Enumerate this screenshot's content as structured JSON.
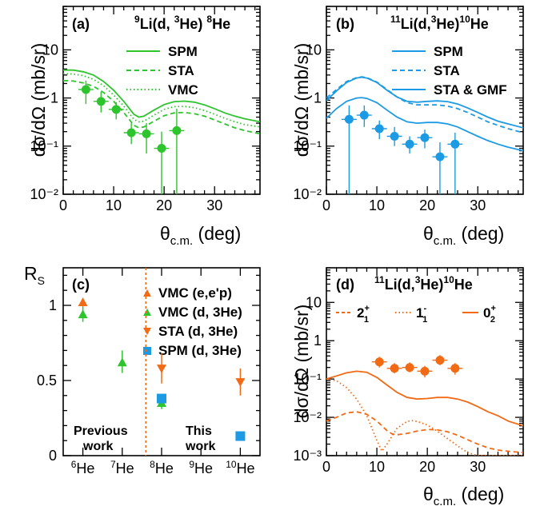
{
  "colors": {
    "green": "#2ec42e",
    "blue": "#1c9be4",
    "orange": "#f26a14",
    "axis": "#000000"
  },
  "chart_data": [
    {
      "id": "a",
      "type": "line",
      "label": "(a)",
      "reaction": {
        "pre": "9",
        "a": "Li(d, ",
        "b": "3",
        "c": "He) ",
        "d": "8",
        "e": "He"
      },
      "xlabel": "θc.m. (deg)",
      "ylabel": "dσ/dΩ (mb/sr)",
      "xlim": [
        0,
        39
      ],
      "ylim": [
        0.01,
        80
      ],
      "yscale": "log",
      "xticks": [
        "0",
        "10",
        "20",
        "30"
      ],
      "yticks": [
        "10⁻²",
        "10⁻¹",
        "1",
        "10"
      ],
      "legend": [
        "SPM",
        "STA",
        "VMC"
      ],
      "series": [
        {
          "name": "SPM",
          "style": "solid",
          "color": "#2ec42e",
          "x": [
            0,
            2,
            4,
            6,
            8,
            10,
            12,
            14,
            15,
            16,
            18,
            20,
            22,
            24,
            26,
            28,
            30,
            32,
            34,
            36,
            39
          ],
          "y": [
            3.8,
            3.8,
            3.5,
            3.0,
            2.2,
            1.45,
            0.85,
            0.46,
            0.4,
            0.42,
            0.56,
            0.73,
            0.84,
            0.86,
            0.82,
            0.72,
            0.6,
            0.49,
            0.42,
            0.37,
            0.32
          ]
        },
        {
          "name": "STA",
          "style": "dashed",
          "color": "#2ec42e",
          "x": [
            0,
            2,
            4,
            6,
            8,
            10,
            12,
            14,
            15,
            16,
            18,
            20,
            22,
            24,
            26,
            28,
            30,
            32,
            34,
            36,
            39
          ],
          "y": [
            2.3,
            2.25,
            2.05,
            1.75,
            1.3,
            0.85,
            0.5,
            0.27,
            0.24,
            0.25,
            0.33,
            0.43,
            0.49,
            0.5,
            0.47,
            0.42,
            0.35,
            0.29,
            0.24,
            0.21,
            0.18
          ]
        },
        {
          "name": "VMC",
          "style": "dotted",
          "color": "#2ec42e",
          "x": [
            0,
            2,
            4,
            6,
            8,
            10,
            12,
            14,
            15,
            16,
            18,
            20,
            22,
            24,
            26,
            28,
            30,
            32,
            34,
            36,
            39
          ],
          "y": [
            3.2,
            3.15,
            2.9,
            2.45,
            1.8,
            1.15,
            0.68,
            0.36,
            0.32,
            0.33,
            0.44,
            0.58,
            0.66,
            0.67,
            0.63,
            0.55,
            0.46,
            0.38,
            0.32,
            0.28,
            0.25
          ]
        }
      ],
      "points": {
        "color": "#2ec42e",
        "shape": "circle",
        "x": [
          4.5,
          7.5,
          10.5,
          13.5,
          16.5,
          19.5,
          22.5
        ],
        "y": [
          1.5,
          0.85,
          0.58,
          0.19,
          0.18,
          0.09,
          0.21
        ],
        "ylo": [
          0.75,
          0.5,
          0.36,
          0.11,
          0.07,
          0.0001,
          0.0001
        ],
        "yhi": [
          2.3,
          1.35,
          0.82,
          0.3,
          0.3,
          0.2,
          0.6
        ]
      }
    },
    {
      "id": "b",
      "type": "line",
      "label": "(b)",
      "reaction": {
        "pre": "11",
        "a": "Li(d,",
        "b": "3",
        "c": "He)",
        "d": "10",
        "e": "He"
      },
      "xlabel": "θc.m. (deg)",
      "ylabel": "dσ/dΩ (mb/sr)",
      "xlim": [
        0,
        39
      ],
      "ylim": [
        0.01,
        80
      ],
      "yscale": "log",
      "xticks": [
        "0",
        "10",
        "20",
        "30"
      ],
      "yticks": [
        "10⁻²",
        "10⁻¹",
        "1",
        "10"
      ],
      "legend": [
        "SPM",
        "STA",
        "STA & GMF"
      ],
      "series": [
        {
          "name": "SPM",
          "style": "solid",
          "color": "#1c9be4",
          "x": [
            0,
            2,
            4,
            6,
            7,
            8,
            10,
            12,
            14,
            16,
            18,
            20,
            22,
            24,
            26,
            28,
            30,
            32,
            34,
            36,
            39
          ],
          "y": [
            0.88,
            1.4,
            2.1,
            2.6,
            2.7,
            2.6,
            2.1,
            1.45,
            1.05,
            0.85,
            0.82,
            0.85,
            0.87,
            0.84,
            0.75,
            0.62,
            0.5,
            0.4,
            0.33,
            0.29,
            0.24
          ]
        },
        {
          "name": "STA",
          "style": "dashed",
          "color": "#1c9be4",
          "x": [
            0,
            2,
            4,
            6,
            7,
            8,
            10,
            12,
            14,
            16,
            18,
            20,
            22,
            24,
            26,
            28,
            30,
            32,
            34,
            36,
            39
          ],
          "y": [
            1.0,
            1.5,
            2.2,
            2.65,
            2.75,
            2.65,
            2.15,
            1.5,
            1.05,
            0.8,
            0.72,
            0.72,
            0.72,
            0.68,
            0.6,
            0.5,
            0.4,
            0.32,
            0.27,
            0.23,
            0.19
          ]
        },
        {
          "name": "STA & GMF",
          "style": "solid",
          "color": "#1c9be4",
          "x": [
            0,
            2,
            4,
            6,
            7,
            8,
            10,
            12,
            14,
            16,
            18,
            20,
            22,
            24,
            26,
            28,
            30,
            32,
            34,
            36,
            39
          ],
          "y": [
            0.38,
            0.6,
            0.85,
            1.0,
            1.02,
            0.98,
            0.8,
            0.56,
            0.4,
            0.32,
            0.3,
            0.31,
            0.31,
            0.29,
            0.25,
            0.2,
            0.16,
            0.13,
            0.11,
            0.095,
            0.08
          ]
        }
      ],
      "points": {
        "color": "#1c9be4",
        "shape": "circle",
        "x": [
          4.5,
          7.5,
          10.5,
          13.5,
          16.5,
          19.5,
          22.5,
          25.5
        ],
        "y": [
          0.36,
          0.44,
          0.23,
          0.16,
          0.11,
          0.15,
          0.06,
          0.11
        ],
        "ylo": [
          0.0001,
          0.25,
          0.14,
          0.1,
          0.07,
          0.09,
          0.0001,
          0.0001
        ],
        "yhi": [
          0.7,
          0.7,
          0.34,
          0.25,
          0.16,
          0.22,
          0.12,
          0.19
        ]
      }
    },
    {
      "id": "c",
      "type": "scatter",
      "label": "(c)",
      "ylabel": "RS",
      "categories": [
        "6He",
        "7He",
        "8He",
        "9He",
        "10He"
      ],
      "ylim": [
        0,
        1.25
      ],
      "yticks": [
        "0",
        "0.5",
        "1"
      ],
      "divider_x": 2.6,
      "region_labels": {
        "left": [
          "Previous",
          "work"
        ],
        "right": [
          "This",
          "work"
        ]
      },
      "legend": [
        "VMC (e,e'p)",
        "VMC (d, 3He)",
        "STA  (d, 3He)",
        "SPM (d, 3He)"
      ],
      "series": [
        {
          "name": "VMC (e,e'p)",
          "shape": "triangle-up",
          "color": "#f26a14",
          "points": [
            {
              "x": 1,
              "y": 1.02,
              "ylo": 0.99,
              "yhi": 1.05
            }
          ]
        },
        {
          "name": "VMC (d, 3He)",
          "shape": "triangle-up",
          "color": "#2ec42e",
          "points": [
            {
              "x": 1,
              "y": 0.94,
              "ylo": 0.89,
              "yhi": 0.99
            },
            {
              "x": 2,
              "y": 0.62,
              "ylo": 0.55,
              "yhi": 0.7
            },
            {
              "x": 3,
              "y": 0.35,
              "ylo": 0.31,
              "yhi": 0.38
            }
          ]
        },
        {
          "name": "STA  (d, 3He)",
          "shape": "triangle-down",
          "color": "#f26a14",
          "points": [
            {
              "x": 3,
              "y": 0.58,
              "ylo": 0.48,
              "yhi": 0.68
            },
            {
              "x": 5,
              "y": 0.49,
              "ylo": 0.4,
              "yhi": 0.58
            }
          ]
        },
        {
          "name": "SPM (d, 3He)",
          "shape": "square",
          "color": "#1c9be4",
          "points": [
            {
              "x": 3,
              "y": 0.38
            },
            {
              "x": 5,
              "y": 0.13
            }
          ]
        }
      ]
    },
    {
      "id": "d",
      "type": "line",
      "label": "(d)",
      "reaction": {
        "pre": "11",
        "a": "Li(d,",
        "b": "3",
        "c": "He)",
        "d": "10",
        "e": "He"
      },
      "xlabel": "θc.m. (deg)",
      "ylabel": "dσ/dΩ (mb/sr)",
      "xlim": [
        0,
        39
      ],
      "ylim": [
        0.001,
        80
      ],
      "yscale": "log",
      "xticks": [
        "0",
        "10",
        "20",
        "30"
      ],
      "yticks": [
        "10⁻³",
        "10⁻²",
        "10⁻¹",
        "1",
        "10"
      ],
      "legend": [
        {
          "base": "2",
          "sup": "+",
          "sub": "1"
        },
        {
          "base": "1",
          "sup": "-",
          "sub": "1"
        },
        {
          "base": "0",
          "sup": "+",
          "sub": "2"
        }
      ],
      "series": [
        {
          "name": "0₂⁺",
          "style": "solid",
          "color": "#f26a14",
          "x": [
            0,
            2,
            4,
            6,
            8,
            10,
            12,
            14,
            16,
            18,
            20,
            22,
            24,
            26,
            28,
            30,
            32,
            34,
            36,
            39
          ],
          "y": [
            0.1,
            0.12,
            0.145,
            0.16,
            0.15,
            0.11,
            0.07,
            0.045,
            0.033,
            0.03,
            0.031,
            0.033,
            0.033,
            0.03,
            0.025,
            0.019,
            0.014,
            0.011,
            0.008,
            0.006
          ]
        },
        {
          "name": "2₁⁺",
          "style": "dashed",
          "color": "#f26a14",
          "x": [
            0,
            2,
            4,
            6,
            8,
            10,
            12,
            13,
            14,
            16,
            18,
            20,
            22,
            24,
            26,
            28,
            30,
            32,
            34,
            36,
            39
          ],
          "y": [
            0.008,
            0.01,
            0.013,
            0.014,
            0.012,
            0.008,
            0.0045,
            0.0037,
            0.0035,
            0.0038,
            0.0044,
            0.0048,
            0.0047,
            0.0042,
            0.0034,
            0.0026,
            0.002,
            0.0016,
            0.0014,
            0.0013,
            0.0012
          ]
        },
        {
          "name": "1₁⁻",
          "style": "dotted",
          "color": "#f26a14",
          "x": [
            0,
            2,
            4,
            6,
            8,
            10,
            11,
            12,
            14,
            16,
            17,
            18,
            20,
            22,
            24,
            26,
            28,
            30,
            32,
            34,
            36,
            39
          ],
          "y": [
            0.1,
            0.09,
            0.06,
            0.03,
            0.011,
            0.0025,
            0.0013,
            0.002,
            0.0052,
            0.0078,
            0.0082,
            0.0078,
            0.0063,
            0.0043,
            0.0028,
            0.0018,
            0.0012,
            0.0009,
            0.00075,
            0.0007,
            0.00068,
            0.00065
          ]
        }
      ],
      "points": {
        "color": "#f26a14",
        "shape": "circle",
        "x": [
          10.5,
          13.5,
          16.5,
          19.5,
          22.5,
          25.5
        ],
        "y": [
          0.28,
          0.19,
          0.2,
          0.16,
          0.31,
          0.19
        ],
        "ylo": [
          0.2,
          0.14,
          0.15,
          0.11,
          0.23,
          0.13
        ],
        "yhi": [
          0.38,
          0.26,
          0.27,
          0.22,
          0.42,
          0.26
        ]
      }
    }
  ]
}
